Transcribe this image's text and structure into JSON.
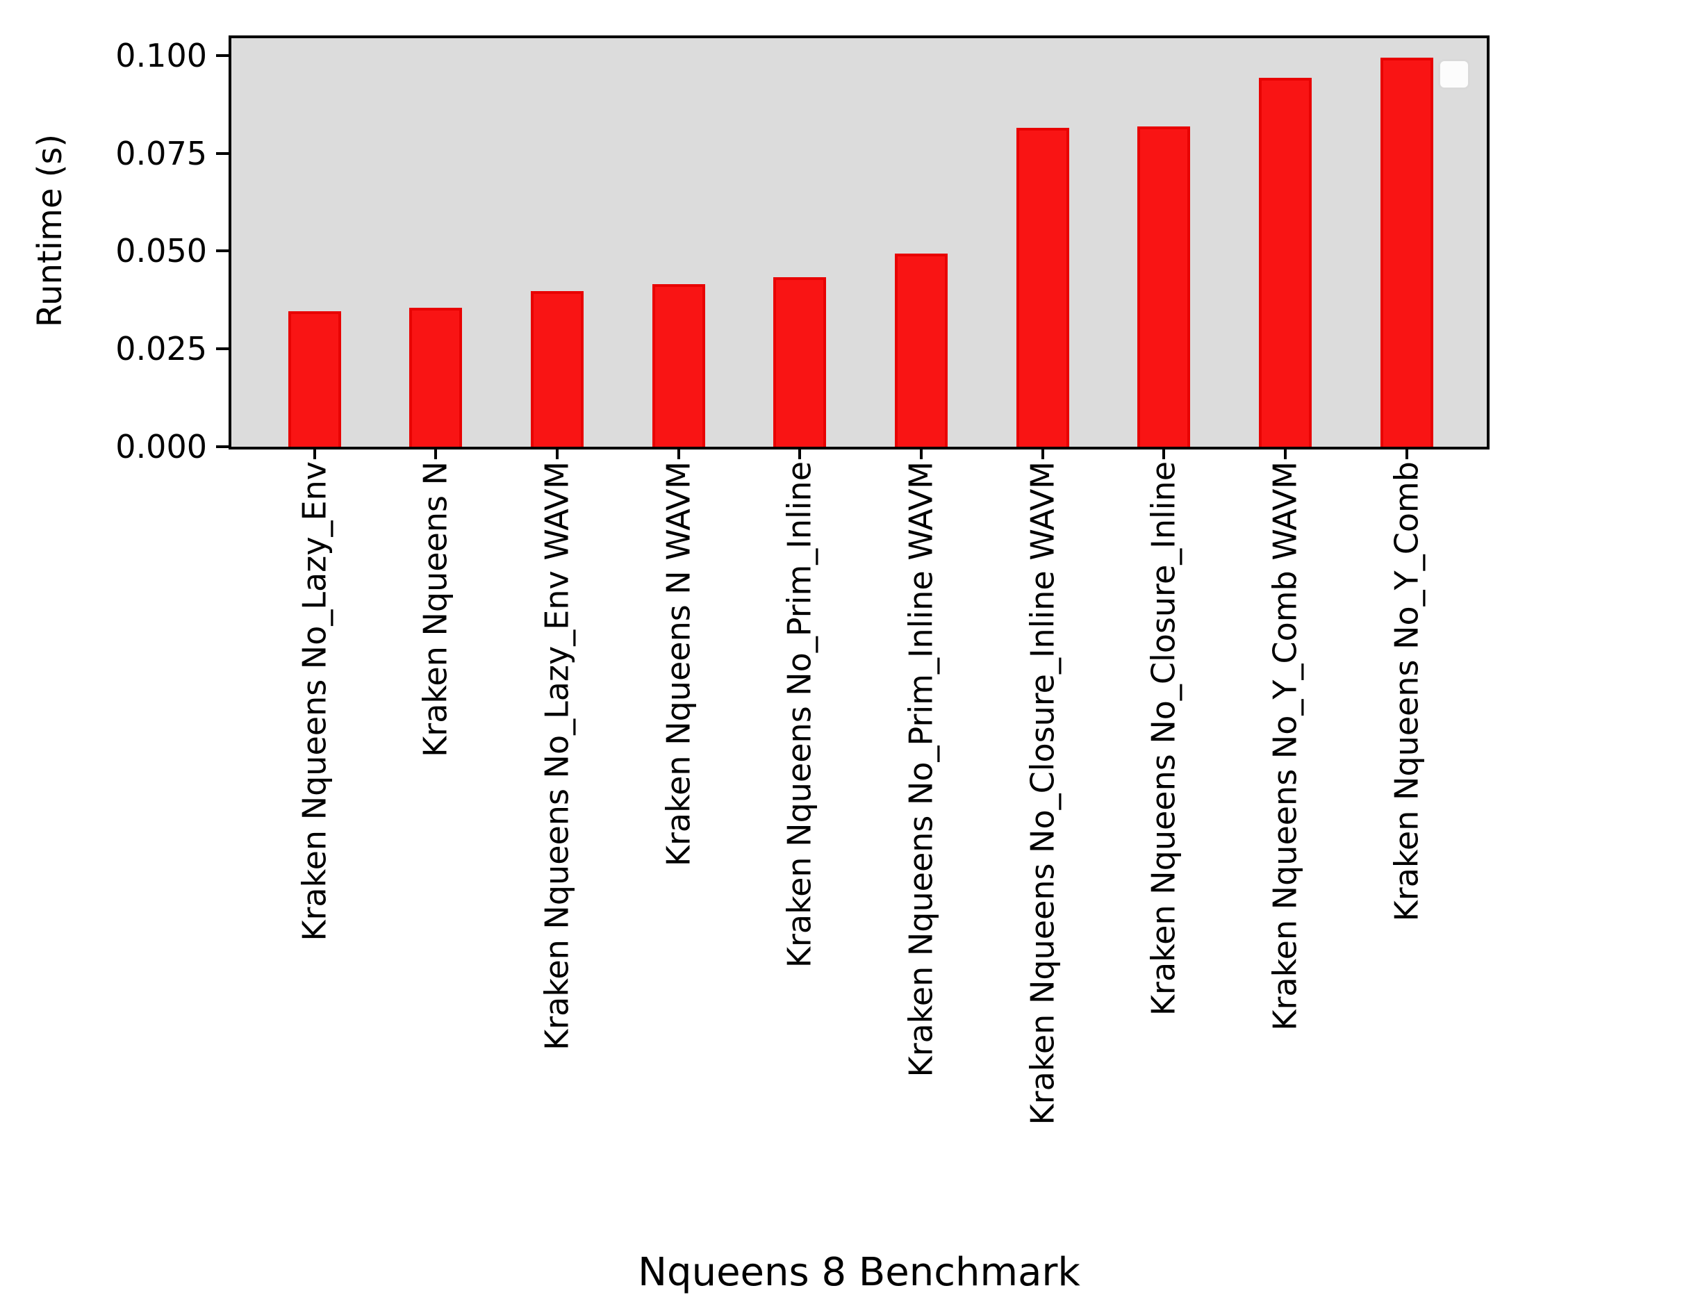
{
  "figure": {
    "background": "#ffffff",
    "plot_background": "#dcdcdc",
    "bar_fill_color": "#f91414",
    "bar_edge_color": "#e80303",
    "axis_color": "#000000",
    "legend_fill_color": "#fcfcfc",
    "legend_border_color": "#d9d9d9"
  },
  "chart_data": {
    "type": "bar",
    "title": "",
    "xlabel": "Nqueens 8 Benchmark",
    "ylabel": "Runtime (s)",
    "categories": [
      "Kraken Nqueens No_Lazy_Env",
      "Kraken Nqueens N",
      "Kraken Nqueens No_Lazy_Env WAVM",
      "Kraken Nqueens N WAVM",
      "Kraken Nqueens No_Prim_Inline",
      "Kraken Nqueens No_Prim_Inline WAVM",
      "Kraken Nqueens No_Closure_Inline WAVM",
      "Kraken Nqueens No_Closure_Inline",
      "Kraken Nqueens No_Y_Comb WAVM",
      "Kraken Nqueens No_Y_Comb"
    ],
    "values": [
      0.0346,
      0.0355,
      0.0397,
      0.0415,
      0.0433,
      0.0494,
      0.0815,
      0.0819,
      0.0943,
      0.0995
    ],
    "ylim": [
      0.0,
      0.1044
    ],
    "yticks": [
      0.0,
      0.025,
      0.05,
      0.075,
      0.1
    ],
    "ytick_labels": [
      "0.000",
      "0.025",
      "0.050",
      "0.075",
      "0.100"
    ],
    "grid": false,
    "legend": {
      "visible": true,
      "position": "upper-right",
      "items": []
    }
  }
}
